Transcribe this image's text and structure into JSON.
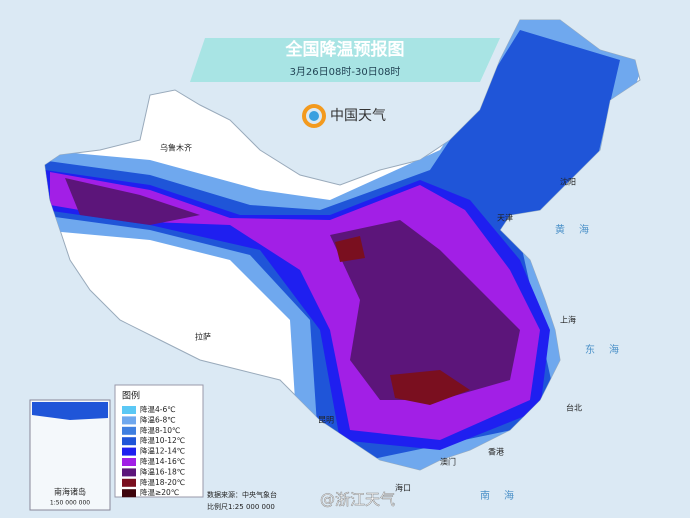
{
  "header": {
    "title": "全国降温预报图",
    "subtitle": "3月26日08时-30日08时"
  },
  "logo": "中国天气",
  "legend": {
    "title": "图例",
    "items": [
      {
        "label": "降温4-6℃",
        "color": "#5bc8f5"
      },
      {
        "label": "降温6-8℃",
        "color": "#6fa8ee"
      },
      {
        "label": "降温8-10℃",
        "color": "#3f7fe0"
      },
      {
        "label": "降温10-12℃",
        "color": "#1f55d8"
      },
      {
        "label": "降温12-14℃",
        "color": "#1f1ff0"
      },
      {
        "label": "降温14-16℃",
        "color": "#a21fe6"
      },
      {
        "label": "降温16-18℃",
        "color": "#5c157a"
      },
      {
        "label": "降温18-20℃",
        "color": "#7a0f1f"
      },
      {
        "label": "降温≥20℃",
        "color": "#3e050c"
      }
    ]
  },
  "cities": [
    "乌鲁木齐",
    "拉萨",
    "昆明",
    "天津",
    "沈阳",
    "上海",
    "台北",
    "香港",
    "澳门",
    "海口"
  ],
  "seas": [
    "黄海",
    "东海",
    "南海"
  ],
  "inset": {
    "label": "南海诸岛",
    "scale": "1:50 000 000"
  },
  "footer": {
    "source": "数据来源：中央气象台",
    "scale": "比例尺1:25 000 000"
  },
  "watermark": "@浙江天气"
}
